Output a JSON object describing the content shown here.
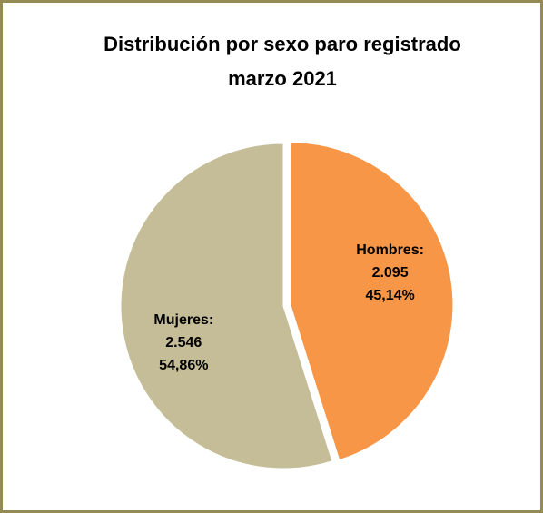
{
  "chart_data": {
    "type": "pie",
    "title": [
      "Distribución por sexo paro registrado",
      "marzo 2021"
    ],
    "categories": [
      "Hombres:",
      "Mujeres:"
    ],
    "values": [
      2095,
      2546
    ],
    "value_labels": [
      "2.095",
      "2.546"
    ],
    "percentages": [
      45.14,
      54.86
    ],
    "percentage_labels": [
      "45,14%",
      "54,86%"
    ],
    "colors": [
      "#f79646",
      "#c4bd97"
    ]
  }
}
